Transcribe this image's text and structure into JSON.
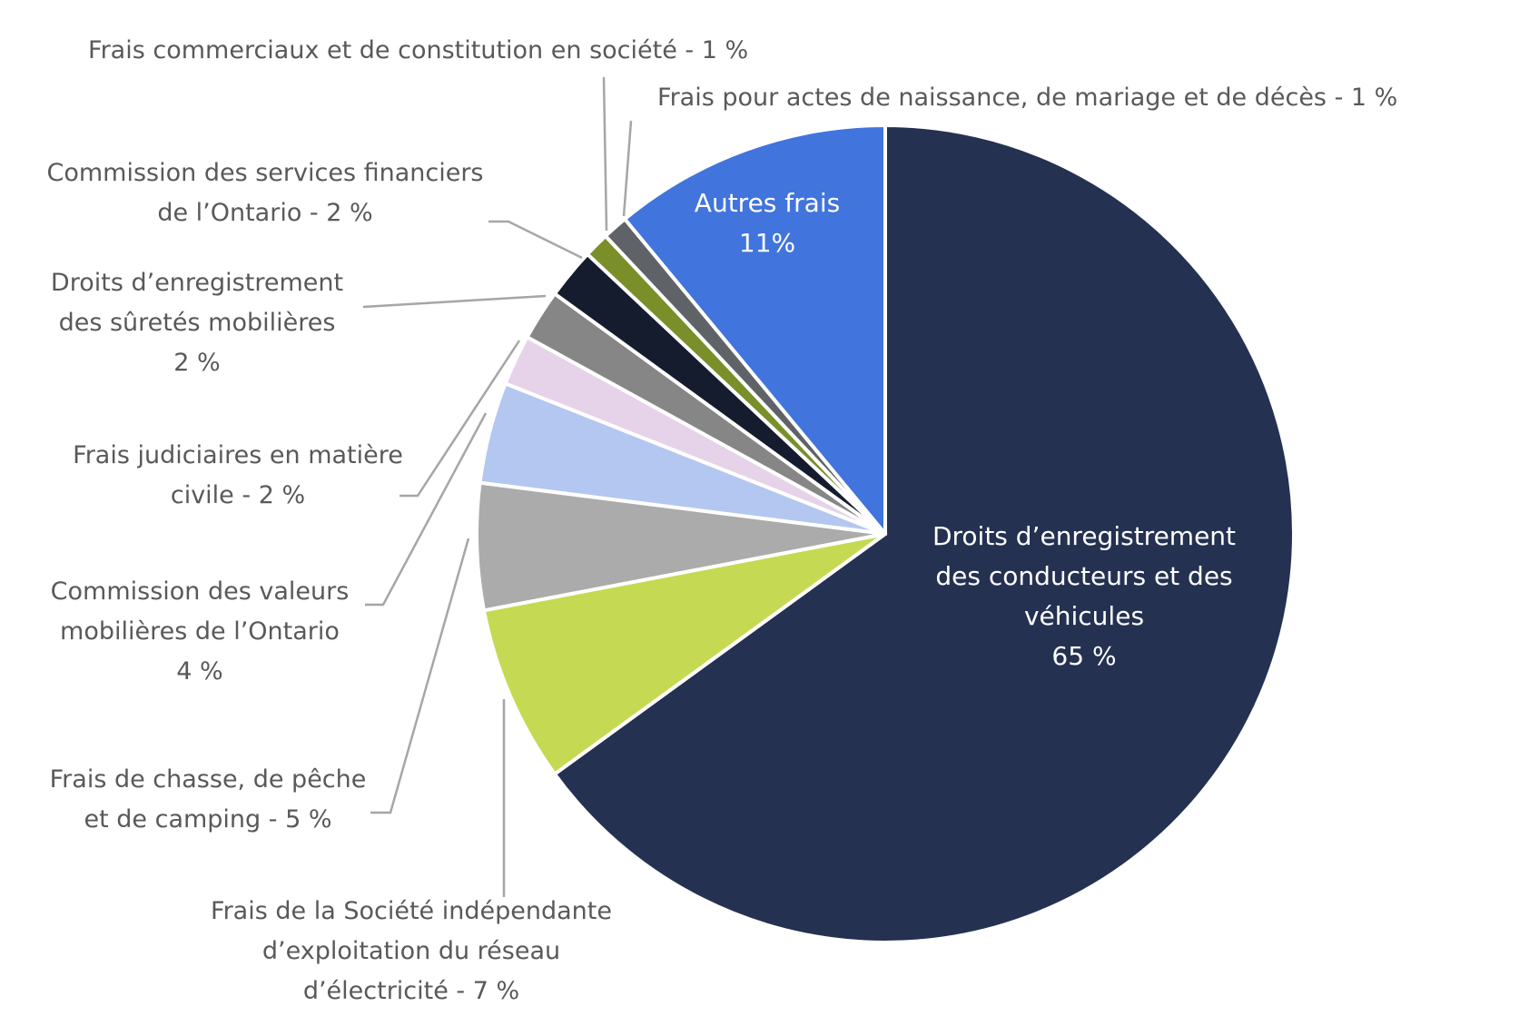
{
  "chart_data": {
    "type": "pie",
    "start_angle_deg": 0,
    "direction": "clockwise",
    "slices": [
      {
        "key": "vehicules",
        "value": 65,
        "color": "#243151",
        "label_lines": [
          "Droits d’enregistrement",
          "des conducteurs et des",
          "véhicules",
          "65 %"
        ]
      },
      {
        "key": "ieso",
        "value": 7,
        "color": "#c5da52",
        "label_lines": [
          "Frais de la Société indépendante",
          "d’exploitation du réseau",
          "d’électricité  - 7 %"
        ]
      },
      {
        "key": "chasse",
        "value": 5,
        "color": "#ababab",
        "label_lines": [
          "Frais de chasse, de pêche",
          "et de camping - 5 %"
        ]
      },
      {
        "key": "valeurs",
        "value": 4,
        "color": "#b4c7f0",
        "label_lines": [
          "Commission des valeurs",
          "mobilières de l’Ontario",
          "4 %"
        ]
      },
      {
        "key": "judiciaires",
        "value": 2,
        "color": "#e6d3ea",
        "label_lines": [
          "Frais judiciaires en matière",
          "civile - 2 %"
        ]
      },
      {
        "key": "suretes",
        "value": 2,
        "color": "#868686",
        "label_lines": [
          "Droits d’enregistrement",
          "des sûretés mobilières",
          "2 %"
        ]
      },
      {
        "key": "cspo",
        "value": 2,
        "color": "#151c2e",
        "label_lines": [
          "Commission des services financiers",
          "de l’Ontario - 2 %"
        ]
      },
      {
        "key": "commerciaux",
        "value": 1,
        "color": "#7a8f2a",
        "label_lines": [
          "Frais commerciaux et de constitution en société - 1 %"
        ]
      },
      {
        "key": "naissance",
        "value": 1,
        "color": "#5f6368",
        "label_lines": [
          "Frais pour actes de naissance, de mariage et de décès - 1 %"
        ]
      },
      {
        "key": "autres",
        "value": 11,
        "color": "#4174dc",
        "label_lines": [
          "Autres frais",
          "11%"
        ]
      }
    ]
  }
}
